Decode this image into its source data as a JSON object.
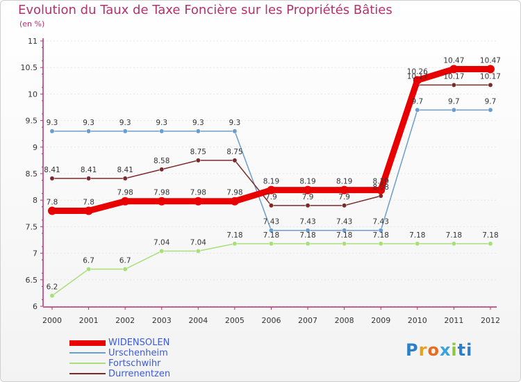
{
  "chart_data": {
    "type": "line",
    "title": "Evolution du Taux de Taxe Foncière sur les Propriétés Bâties",
    "subtitle": "(en %)",
    "x": [
      "2000",
      "2001",
      "2002",
      "2003",
      "2004",
      "2005",
      "2006",
      "2007",
      "2008",
      "2009",
      "2010",
      "2011",
      "2012"
    ],
    "ylim": [
      6,
      11
    ],
    "yticks": [
      "6",
      "6.5",
      "7",
      "7.5",
      "8",
      "8.5",
      "9",
      "9.5",
      "10",
      "10.5",
      "11"
    ],
    "series": [
      {
        "name": "WIDENSOLEN",
        "color": "#e80000",
        "values": [
          7.8,
          7.8,
          7.98,
          7.98,
          7.98,
          7.98,
          8.19,
          8.19,
          8.19,
          8.19,
          10.26,
          10.47,
          10.47
        ],
        "labels": [
          "7.8",
          "7.8",
          "7.98",
          "7.98",
          "7.98",
          "7.98",
          "8.19",
          "8.19",
          "8.19",
          "8.19",
          "10.26",
          "10.47",
          "10.47"
        ]
      },
      {
        "name": "Urschenheim",
        "color": "#6a9ccd",
        "values": [
          9.3,
          9.3,
          9.3,
          9.3,
          9.3,
          9.3,
          7.43,
          7.43,
          7.43,
          7.43,
          9.7,
          9.7,
          9.7
        ],
        "labels": [
          "9.3",
          "9.3",
          "9.3",
          "9.3",
          "9.3",
          "9.3",
          "7.43",
          "7.43",
          "7.43",
          "7.43",
          "9.7",
          "9.7",
          "9.7"
        ]
      },
      {
        "name": "Fortschwihr",
        "color": "#a8df7a",
        "values": [
          6.2,
          6.7,
          6.7,
          7.04,
          7.04,
          7.18,
          7.18,
          7.18,
          7.18,
          7.18,
          7.18,
          7.18,
          7.18
        ],
        "labels": [
          "6.2",
          "6.7",
          "6.7",
          "7.04",
          "7.04",
          "7.18",
          "7.18",
          "7.18",
          "7.18",
          "7.18",
          "7.18",
          "7.18",
          "7.18"
        ]
      },
      {
        "name": "Durrenentzen",
        "color": "#7a2a2a",
        "values": [
          8.41,
          8.41,
          8.41,
          8.58,
          8.75,
          8.75,
          7.9,
          7.9,
          7.9,
          8.08,
          10.17,
          10.17,
          10.17
        ],
        "labels": [
          "8.41",
          "8.41",
          "8.41",
          "8.58",
          "8.75",
          "8.75",
          "7.9",
          "7.9",
          "7.9",
          "8.08",
          "10.17",
          "10.17",
          "10.17"
        ]
      }
    ]
  },
  "legend": {
    "items": [
      {
        "label": "WIDENSOLEN",
        "color": "#e80000"
      },
      {
        "label": "Urschenheim",
        "color": "#6a9ccd"
      },
      {
        "label": "Fortschwihr",
        "color": "#a8df7a"
      },
      {
        "label": "Durrenentzen",
        "color": "#7a2a2a"
      }
    ]
  },
  "logo": {
    "letters": [
      "P",
      "r",
      "o",
      "x",
      "i",
      "ti"
    ]
  }
}
